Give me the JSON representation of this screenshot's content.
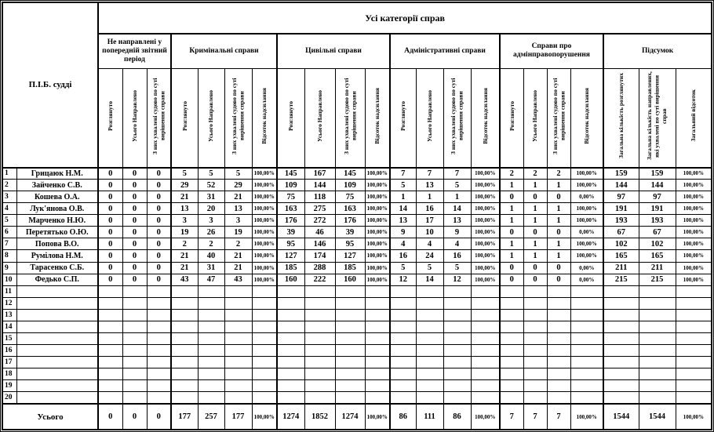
{
  "table": {
    "title": "Усі категорії справ",
    "judge_col_header": "П.І.Б. судді",
    "total_label": "Усього",
    "groups": [
      {
        "label": "Не направлені у попередній звітний період",
        "cols": [
          "Розглянуто",
          "Усього Направлено",
          "З них ухвалені судово по суті вирішення справи"
        ]
      },
      {
        "label": "Кримінальні справи",
        "cols": [
          "Розглянуто",
          "Усього Направлено",
          "З них ухвалені судово по суті вирішення справи",
          "Відсоток надсилання"
        ]
      },
      {
        "label": "Цивільні справи",
        "cols": [
          "Розглянуто",
          "Усього Направлено",
          "З них ухвалені судово по суті вирішення справи",
          "Відсоток надсилання"
        ]
      },
      {
        "label": "Адміністративні справи",
        "cols": [
          "Розглянуто",
          "Усього Направлено",
          "З них ухвалені судово по суті вирішення справи",
          "Відсоток надсилання"
        ]
      },
      {
        "label": "Справи про адмінправопорушення",
        "cols": [
          "Розглянуто",
          "Усього Направлено",
          "З них ухвалені судово по суті вирішення справи",
          "Відсоток надсилання"
        ]
      },
      {
        "label": "Підсумок",
        "cols": [
          "Загальна кількість розглянутих",
          "Загальна кількість направлених, які ухвалені по суті вирішення справ",
          "Загальний відсоток"
        ]
      }
    ],
    "rows": [
      {
        "num": "1",
        "name": "Грицаюк Н.М.",
        "values": [
          "0",
          "0",
          "0",
          "5",
          "5",
          "5",
          "100,00%",
          "145",
          "167",
          "145",
          "100,00%",
          "7",
          "7",
          "7",
          "100,00%",
          "2",
          "2",
          "2",
          "100,00%",
          "159",
          "159",
          "100,00%"
        ]
      },
      {
        "num": "2",
        "name": "Зайченко С.В.",
        "values": [
          "0",
          "0",
          "0",
          "29",
          "52",
          "29",
          "100,00%",
          "109",
          "144",
          "109",
          "100,00%",
          "5",
          "13",
          "5",
          "100,00%",
          "1",
          "1",
          "1",
          "100,00%",
          "144",
          "144",
          "100,00%"
        ]
      },
      {
        "num": "3",
        "name": "Кошева О.А.",
        "values": [
          "0",
          "0",
          "0",
          "21",
          "31",
          "21",
          "100,00%",
          "75",
          "118",
          "75",
          "100,00%",
          "1",
          "1",
          "1",
          "100,00%",
          "0",
          "0",
          "0",
          "0,00%",
          "97",
          "97",
          "100,00%"
        ]
      },
      {
        "num": "4",
        "name": "Лук'янова О.В.",
        "values": [
          "0",
          "0",
          "0",
          "13",
          "20",
          "13",
          "100,00%",
          "163",
          "275",
          "163",
          "100,00%",
          "14",
          "16",
          "14",
          "100,00%",
          "1",
          "1",
          "1",
          "100,00%",
          "191",
          "191",
          "100,00%"
        ]
      },
      {
        "num": "5",
        "name": "Марченко Н.Ю.",
        "values": [
          "0",
          "0",
          "0",
          "3",
          "3",
          "3",
          "100,00%",
          "176",
          "272",
          "176",
          "100,00%",
          "13",
          "17",
          "13",
          "100,00%",
          "1",
          "1",
          "1",
          "100,00%",
          "193",
          "193",
          "100,00%"
        ]
      },
      {
        "num": "6",
        "name": "Перетятько О.Ю.",
        "values": [
          "0",
          "0",
          "0",
          "19",
          "26",
          "19",
          "100,00%",
          "39",
          "46",
          "39",
          "100,00%",
          "9",
          "10",
          "9",
          "100,00%",
          "0",
          "0",
          "0",
          "0,00%",
          "67",
          "67",
          "100,00%"
        ]
      },
      {
        "num": "7",
        "name": "Попова В.О.",
        "values": [
          "0",
          "0",
          "0",
          "2",
          "2",
          "2",
          "100,00%",
          "95",
          "146",
          "95",
          "100,00%",
          "4",
          "4",
          "4",
          "100,00%",
          "1",
          "1",
          "1",
          "100,00%",
          "102",
          "102",
          "100,00%"
        ]
      },
      {
        "num": "8",
        "name": "Румілова Н.М.",
        "values": [
          "0",
          "0",
          "0",
          "21",
          "40",
          "21",
          "100,00%",
          "127",
          "174",
          "127",
          "100,00%",
          "16",
          "24",
          "16",
          "100,00%",
          "1",
          "1",
          "1",
          "100,00%",
          "165",
          "165",
          "100,00%"
        ]
      },
      {
        "num": "9",
        "name": "Тарасенко С.Б.",
        "values": [
          "0",
          "0",
          "0",
          "21",
          "31",
          "21",
          "100,00%",
          "185",
          "288",
          "185",
          "100,00%",
          "5",
          "5",
          "5",
          "100,00%",
          "0",
          "0",
          "0",
          "0,00%",
          "211",
          "211",
          "100,00%"
        ]
      },
      {
        "num": "10",
        "name": "Федько С.П.",
        "values": [
          "0",
          "0",
          "0",
          "43",
          "47",
          "43",
          "100,00%",
          "160",
          "222",
          "160",
          "100,00%",
          "12",
          "14",
          "12",
          "100,00%",
          "0",
          "0",
          "0",
          "0,00%",
          "215",
          "215",
          "100,00%"
        ]
      }
    ],
    "empty_row_numbers": [
      "11",
      "12",
      "13",
      "14",
      "15",
      "16",
      "17",
      "18",
      "19",
      "20"
    ],
    "total_values": [
      "0",
      "0",
      "0",
      "177",
      "257",
      "177",
      "100,00%",
      "1274",
      "1852",
      "1274",
      "100,00%",
      "86",
      "111",
      "86",
      "100,00%",
      "7",
      "7",
      "7",
      "100,00%",
      "1544",
      "1544",
      "100,00%"
    ]
  },
  "colors": {
    "border": "#000000",
    "background": "#ffffff",
    "text": "#000000"
  }
}
